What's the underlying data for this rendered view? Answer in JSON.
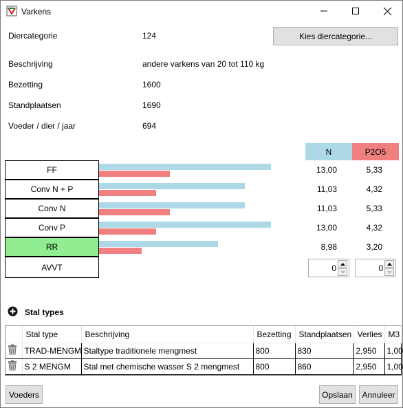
{
  "window": {
    "title": "Varkens",
    "icon": "app-logo-icon",
    "controls": [
      "minimize-icon",
      "maximize-icon",
      "close-icon"
    ]
  },
  "info": {
    "diercategorie_label": "Diercategorie",
    "diercategorie_value": "124",
    "kies_button": "Kies diercategorie...",
    "beschrijving_label": "Beschrijving",
    "beschrijving_value": "andere varkens van 20 tot 110 kg",
    "bezetting_label": "Bezetting",
    "bezetting_value": "1600",
    "standplaatsen_label": "Standplaatsen",
    "standplaatsen_value": "1690",
    "voeder_label": "Voeder / dier / jaar",
    "voeder_value": "694"
  },
  "comparison": {
    "header_n": "N",
    "header_p": "P2O5",
    "color_n": "#add8e6",
    "color_p": "#f08080",
    "color_active": "#90ee90",
    "rows": [
      {
        "label": "FF",
        "n": "13,00",
        "p": "5,33",
        "n_num": 13.0,
        "p_num": 5.33,
        "active": false
      },
      {
        "label": "Conv N + P",
        "n": "11,03",
        "p": "4,32",
        "n_num": 11.03,
        "p_num": 4.32,
        "active": false
      },
      {
        "label": "Conv N",
        "n": "11,03",
        "p": "5,33",
        "n_num": 11.03,
        "p_num": 5.33,
        "active": false
      },
      {
        "label": "Conv P",
        "n": "13,00",
        "p": "4,32",
        "n_num": 13.0,
        "p_num": 4.32,
        "active": false
      },
      {
        "label": "RR",
        "n": "8,98",
        "p": "3,20",
        "n_num": 8.98,
        "p_num": 3.2,
        "active": true
      }
    ],
    "avvt_label": "AVVT",
    "avvt_n": "0",
    "avvt_p": "0"
  },
  "stal": {
    "section_title": "Stal types",
    "add_icon": "plus-circle-icon",
    "columns": [
      "Stal type",
      "Beschrijving",
      "Bezetting",
      "Standplaatsen",
      "Verlies",
      "M3"
    ],
    "rows": [
      {
        "type": "TRAD-MENGM",
        "beschrijving": "Staltype traditionele mengmest",
        "bezetting": "800",
        "standplaatsen": "830",
        "verlies": "2,950",
        "m3": "1,00"
      },
      {
        "type": "S 2 MENGM",
        "beschrijving": "Stal met chemische wasser S 2 mengmest",
        "bezetting": "800",
        "standplaatsen": "860",
        "verlies": "2,950",
        "m3": "1,00"
      }
    ],
    "row_icon": "trash-icon"
  },
  "footer": {
    "voeders": "Voeders",
    "opslaan": "Opslaan",
    "annuleer": "Annuleer"
  }
}
